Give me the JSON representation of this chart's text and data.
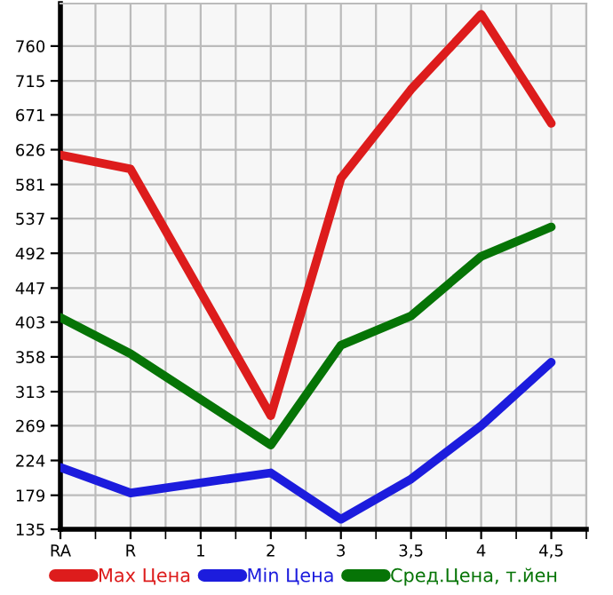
{
  "chart_data": {
    "type": "line",
    "categories": [
      "RA",
      "R",
      "1",
      "2",
      "3",
      "3,5",
      "4",
      "4,5"
    ],
    "series": [
      {
        "name": "Max Цена",
        "color": "#dd1c1c",
        "values": [
          619,
          601,
          null,
          282,
          589,
          704,
          801,
          660
        ]
      },
      {
        "name": "Min Цена",
        "color": "#1c1cdd",
        "values": [
          215,
          182,
          null,
          208,
          148,
          200,
          269,
          351
        ]
      },
      {
        "name": "Сред.Цена, т.йен",
        "color": "#067406",
        "values": [
          409,
          362,
          null,
          244,
          373,
          411,
          488,
          526
        ]
      }
    ],
    "ylim": [
      135,
      815
    ],
    "yticks": [
      135,
      179,
      224,
      269,
      313,
      358,
      403,
      447,
      492,
      537,
      581,
      626,
      671,
      715,
      760
    ],
    "grid": true,
    "legend": "bottom",
    "marker": "none",
    "line_style": "solid"
  }
}
